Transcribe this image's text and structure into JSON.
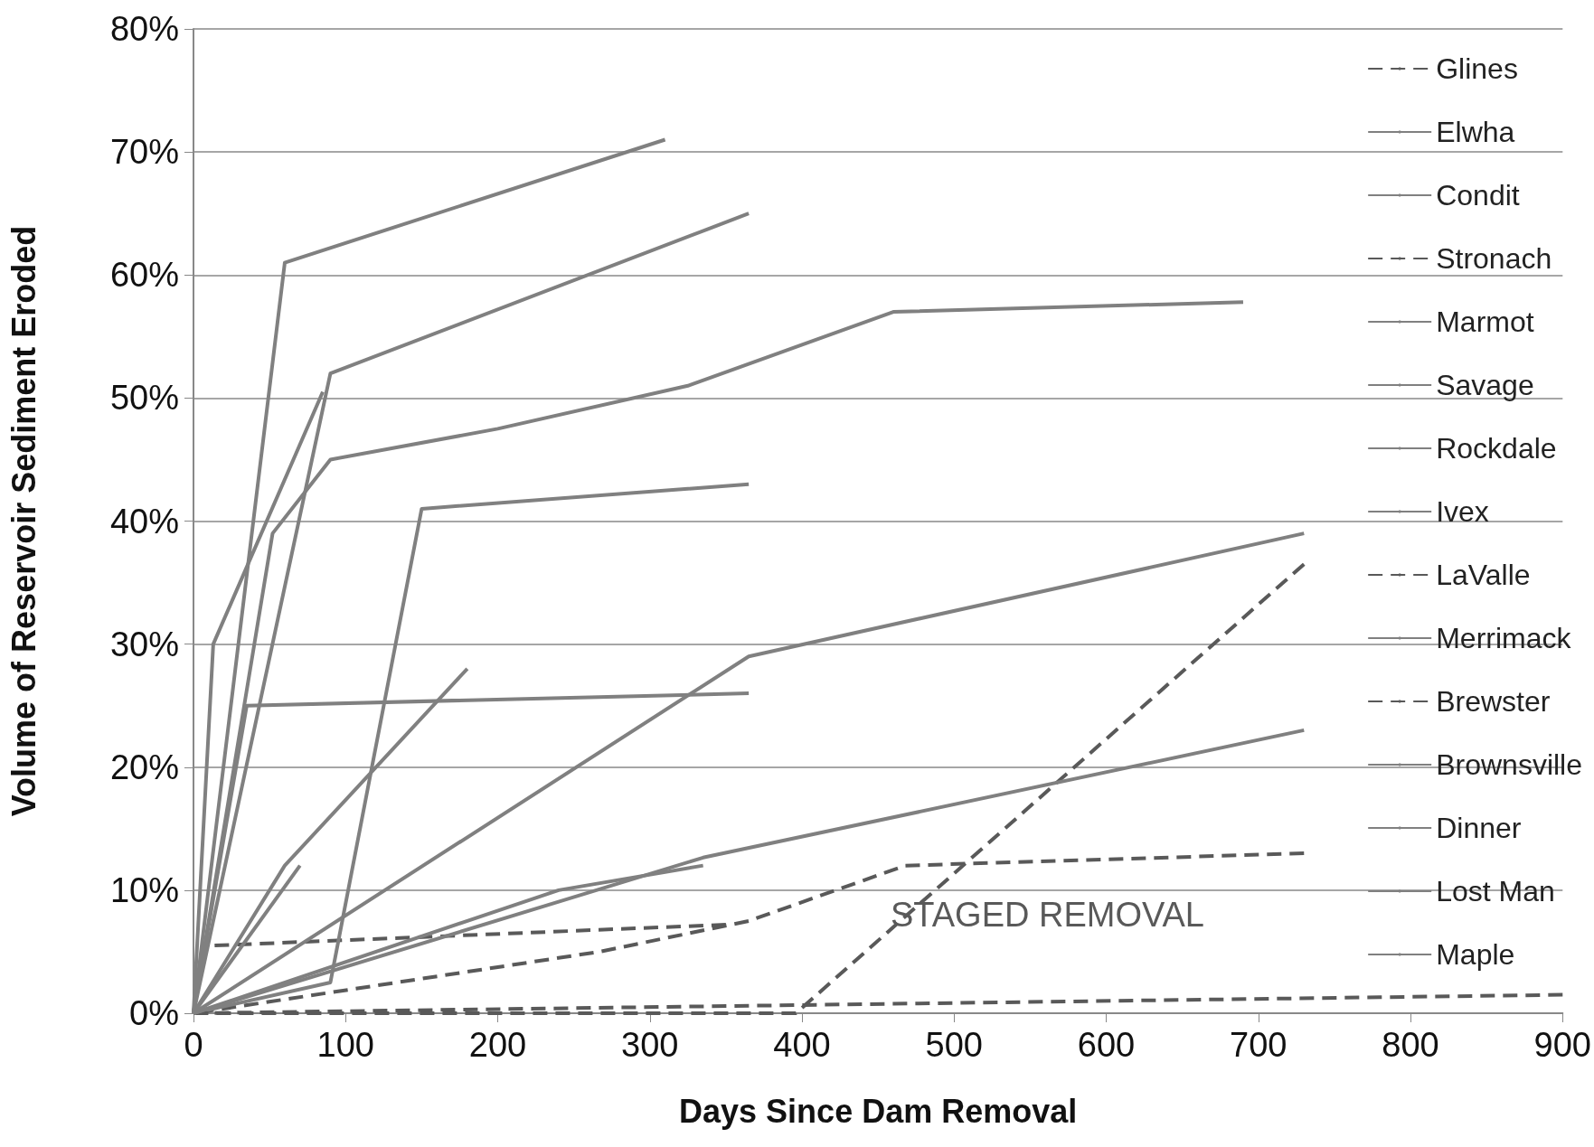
{
  "chart_data": {
    "type": "line",
    "xlabel": "Days Since Dam Removal",
    "ylabel": "Volume of Reservoir Sediment Eroded",
    "xlim": [
      0,
      900
    ],
    "xticks": [
      0,
      100,
      200,
      300,
      400,
      500,
      600,
      700,
      800,
      900
    ],
    "ylim": [
      0,
      80
    ],
    "yticks": [
      {
        "value": 0,
        "label": "0%"
      },
      {
        "value": 10,
        "label": "10%"
      },
      {
        "value": 20,
        "label": "20%"
      },
      {
        "value": 30,
        "label": "30%"
      },
      {
        "value": 40,
        "label": "40%"
      },
      {
        "value": 50,
        "label": "50%"
      },
      {
        "value": 60,
        "label": "60%"
      },
      {
        "value": 70,
        "label": "70%"
      },
      {
        "value": 80,
        "label": "80%"
      }
    ],
    "grid": "y",
    "legend": "top right",
    "marker": "none",
    "annotations": [
      "STAGED REMOVAL"
    ],
    "series": [
      {
        "name": "Glines",
        "color": "#595959",
        "line_style": "dashed",
        "x": [
          13,
          350
        ],
        "values": [
          5.5,
          7.2
        ]
      },
      {
        "name": "Elwha",
        "color": "#808080",
        "line_style": "solid",
        "x": [
          0,
          60,
          310
        ],
        "values": [
          0,
          61,
          71
        ]
      },
      {
        "name": "Condit",
        "color": "#808080",
        "line_style": "solid",
        "x": [
          0,
          90,
          365
        ],
        "values": [
          0,
          52,
          65
        ]
      },
      {
        "name": "Stronach",
        "color": "#595959",
        "line_style": "dashed",
        "x": [
          0,
          267,
          365,
          468,
          730
        ],
        "values": [
          0,
          5,
          7.5,
          12,
          13
        ]
      },
      {
        "name": "Marmot",
        "color": "#808080",
        "line_style": "solid",
        "x": [
          0,
          13,
          85
        ],
        "values": [
          0,
          30,
          50.5
        ]
      },
      {
        "name": "Savage",
        "color": "#808080",
        "line_style": "solid",
        "x": [
          0,
          52,
          90,
          200,
          325,
          460,
          690
        ],
        "values": [
          0,
          39,
          45,
          47.5,
          51,
          57,
          57.8
        ]
      },
      {
        "name": "Rockdale",
        "color": "#808080",
        "line_style": "solid",
        "x": [
          0,
          90,
          150,
          365
        ],
        "values": [
          0,
          2.5,
          41,
          43
        ]
      },
      {
        "name": "Ivex",
        "color": "#808080",
        "line_style": "solid",
        "x": [
          0,
          35,
          365
        ],
        "values": [
          0,
          25,
          26
        ]
      },
      {
        "name": "LaValle",
        "color": "#595959",
        "line_style": "dashed",
        "x": [
          0,
          396,
          730
        ],
        "values": [
          0,
          0,
          36.5
        ]
      },
      {
        "name": "Merrimack",
        "color": "#808080",
        "line_style": "solid",
        "x": [
          0,
          60,
          180
        ],
        "values": [
          0,
          12,
          28
        ]
      },
      {
        "name": "Brewster",
        "color": "#595959",
        "line_style": "dashed",
        "x": [
          0,
          900
        ],
        "values": [
          0,
          1.5
        ]
      },
      {
        "name": "Brownsville",
        "color": "#808080",
        "line_style": "solid",
        "x": [
          0,
          70
        ],
        "values": [
          0,
          12
        ]
      },
      {
        "name": "Dinner",
        "color": "#808080",
        "line_style": "solid",
        "x": [
          0,
          365,
          730
        ],
        "values": [
          0,
          29,
          39
        ]
      },
      {
        "name": "Lost Man",
        "color": "#808080",
        "line_style": "solid",
        "x": [
          0,
          240,
          335
        ],
        "values": [
          0,
          10,
          12
        ]
      },
      {
        "name": "Maple",
        "color": "#808080",
        "line_style": "solid",
        "x": [
          0,
          335,
          730
        ],
        "values": [
          0,
          12.65,
          23
        ]
      }
    ]
  }
}
